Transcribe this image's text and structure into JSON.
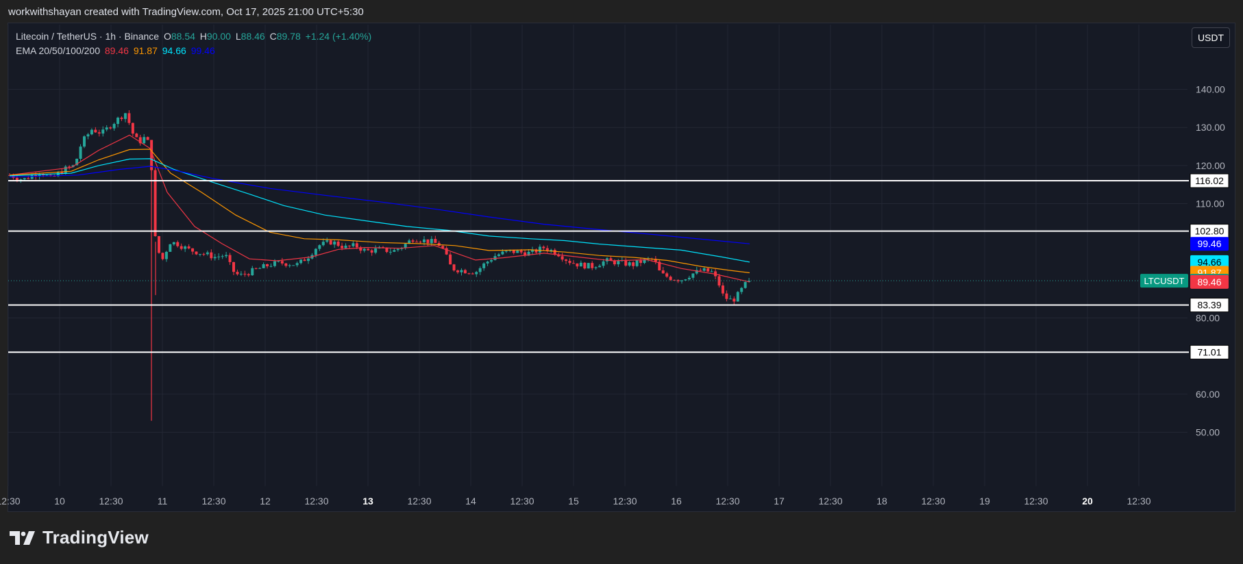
{
  "credit": "workwithshayan created with TradingView.com, Oct 17, 2025 21:00 UTC+5:30",
  "legend": {
    "symbol": "Litecoin / TetherUS · 1h · Binance",
    "o_label": "O",
    "o_value": "88.54",
    "h_label": "H",
    "h_value": "90.00",
    "l_label": "L",
    "l_value": "88.46",
    "c_label": "C",
    "c_value": "89.78",
    "change": "+1.24 (+1.40%)",
    "ema_label": "EMA 20/50/100/200",
    "ema20": "89.46",
    "ema50": "91.87",
    "ema100": "94.66",
    "ema200": "99.46"
  },
  "currency_button": "USDT",
  "brand": {
    "name": "TradingView",
    "logo_icon": "tradingview-logo-icon"
  },
  "colors": {
    "bull": "#26a69a",
    "bear": "#f23645",
    "ema20": "#f23645",
    "ema50": "#ff9800",
    "ema100": "#00e5ff",
    "ema200": "#0000ff",
    "hline": "#ffffff"
  },
  "chart_data": {
    "type": "candlestick",
    "title": "Litecoin / TetherUS · 1h · Binance",
    "y_ticks": [
      "140.00",
      "130.00",
      "120.00",
      "110.00",
      "80.00",
      "60.00",
      "50.00"
    ],
    "x_ticks": [
      "12:30",
      "10",
      "12:30",
      "11",
      "12:30",
      "12",
      "12:30",
      "13",
      "12:30",
      "14",
      "12:30",
      "15",
      "12:30",
      "16",
      "12:30",
      "17",
      "12:30",
      "18",
      "12:30",
      "19",
      "12:30",
      "20",
      "12:30"
    ],
    "x_tick_bold": [
      "13",
      "20"
    ],
    "ylim": [
      42,
      152
    ],
    "horizontal_levels": [
      "116.02",
      "102.80",
      "83.39",
      "71.01"
    ],
    "price_labels": [
      {
        "text": "99.46",
        "value": 99.46,
        "color": "#0000ff",
        "text_color": "#ffffff"
      },
      {
        "text": "94.66",
        "value": 94.66,
        "color": "#00e5ff",
        "text_color": "#000000"
      },
      {
        "text": "91.87",
        "value": 91.87,
        "color": "#ff9800",
        "text_color": "#ffffff"
      },
      {
        "text": "89.78",
        "value": 89.78,
        "color": "#089981",
        "text_color": "#ffffff"
      },
      {
        "text": "89.46",
        "value": 89.46,
        "color": "#f23645",
        "text_color": "#ffffff"
      }
    ],
    "last_price": {
      "symbol": "LTCUSDT",
      "value": 89.78
    },
    "price_path": [
      [
        0,
        117.5
      ],
      [
        20,
        116.3
      ],
      [
        45,
        118.5
      ],
      [
        60,
        116.5
      ],
      [
        80,
        119.0
      ],
      [
        95,
        120.0
      ],
      [
        105,
        126.0
      ],
      [
        120,
        129.5
      ],
      [
        135,
        128.5
      ],
      [
        150,
        131.0
      ],
      [
        160,
        132.5
      ],
      [
        170,
        134.0
      ],
      [
        178,
        129.0
      ],
      [
        188,
        126.0
      ],
      [
        198,
        127.5
      ],
      [
        205,
        125.0
      ],
      [
        207,
        120.0
      ],
      [
        210,
        104.0
      ],
      [
        215,
        98.0
      ],
      [
        225,
        95.0
      ],
      [
        232,
        100.0
      ],
      [
        245,
        99.5
      ],
      [
        260,
        98.0
      ],
      [
        280,
        97.0
      ],
      [
        300,
        96.0
      ],
      [
        315,
        96.5
      ],
      [
        325,
        92.5
      ],
      [
        335,
        91.0
      ],
      [
        350,
        92.0
      ],
      [
        365,
        93.0
      ],
      [
        380,
        94.0
      ],
      [
        395,
        94.5
      ],
      [
        420,
        94.0
      ],
      [
        435,
        96.0
      ],
      [
        450,
        99.0
      ],
      [
        470,
        100.0
      ],
      [
        490,
        98.5
      ],
      [
        505,
        99.0
      ],
      [
        520,
        97.5
      ],
      [
        540,
        98.0
      ],
      [
        560,
        97.5
      ],
      [
        575,
        99.0
      ],
      [
        590,
        101.0
      ],
      [
        600,
        100.5
      ],
      [
        615,
        100.0
      ],
      [
        630,
        99.0
      ],
      [
        645,
        93.0
      ],
      [
        660,
        92.5
      ],
      [
        680,
        92.0
      ],
      [
        695,
        94.5
      ],
      [
        710,
        96.5
      ],
      [
        730,
        97.5
      ],
      [
        760,
        97.0
      ],
      [
        780,
        98.5
      ],
      [
        800,
        97.0
      ],
      [
        815,
        95.0
      ],
      [
        830,
        94.0
      ],
      [
        850,
        93.5
      ],
      [
        870,
        95.0
      ],
      [
        890,
        94.5
      ],
      [
        910,
        94.0
      ],
      [
        925,
        95.0
      ],
      [
        940,
        95.5
      ],
      [
        950,
        91.5
      ],
      [
        965,
        90.5
      ],
      [
        980,
        90.0
      ],
      [
        995,
        91.5
      ],
      [
        1010,
        92.5
      ],
      [
        1025,
        92.0
      ],
      [
        1035,
        89.0
      ],
      [
        1042,
        85.5
      ],
      [
        1055,
        84.5
      ],
      [
        1065,
        86.5
      ],
      [
        1072,
        88.5
      ],
      [
        1080,
        89.78
      ]
    ],
    "spikes": [
      {
        "x": 207,
        "high": 126.0,
        "low": 53.0
      },
      {
        "x": 213,
        "high": 100.0,
        "low": 86.0
      }
    ],
    "ema_lines": [
      {
        "name": "EMA 20",
        "points": [
          [
            0,
            117.5
          ],
          [
            90,
            119.5
          ],
          [
            130,
            124
          ],
          [
            175,
            128
          ],
          [
            205,
            124.5
          ],
          [
            230,
            113
          ],
          [
            270,
            104
          ],
          [
            310,
            99.5
          ],
          [
            350,
            95.5
          ],
          [
            390,
            95
          ],
          [
            440,
            96
          ],
          [
            480,
            98
          ],
          [
            520,
            98.5
          ],
          [
            570,
            98.3
          ],
          [
            620,
            99
          ],
          [
            680,
            95.2
          ],
          [
            720,
            95.8
          ],
          [
            780,
            97
          ],
          [
            830,
            96
          ],
          [
            880,
            95
          ],
          [
            930,
            95.3
          ],
          [
            980,
            93
          ],
          [
            1030,
            91.5
          ],
          [
            1080,
            89.46
          ]
        ]
      },
      {
        "name": "EMA 50",
        "points": [
          [
            0,
            117.5
          ],
          [
            90,
            118.5
          ],
          [
            130,
            121.5
          ],
          [
            175,
            124.2
          ],
          [
            205,
            124.3
          ],
          [
            235,
            118
          ],
          [
            280,
            113
          ],
          [
            330,
            107
          ],
          [
            380,
            102.5
          ],
          [
            430,
            100.8
          ],
          [
            480,
            100.5
          ],
          [
            540,
            99.8
          ],
          [
            600,
            99.5
          ],
          [
            650,
            99
          ],
          [
            700,
            97.7
          ],
          [
            760,
            97.9
          ],
          [
            810,
            97.3
          ],
          [
            860,
            96.4
          ],
          [
            910,
            95.9
          ],
          [
            960,
            95.1
          ],
          [
            1010,
            93.5
          ],
          [
            1050,
            92.5
          ],
          [
            1080,
            91.87
          ]
        ]
      },
      {
        "name": "EMA 100",
        "points": [
          [
            0,
            117.3
          ],
          [
            90,
            118
          ],
          [
            130,
            120
          ],
          [
            175,
            121.7
          ],
          [
            205,
            121.8
          ],
          [
            240,
            119
          ],
          [
            290,
            116
          ],
          [
            350,
            112.5
          ],
          [
            400,
            109.5
          ],
          [
            460,
            107
          ],
          [
            520,
            105.5
          ],
          [
            580,
            104
          ],
          [
            640,
            103
          ],
          [
            700,
            101.5
          ],
          [
            760,
            100.8
          ],
          [
            810,
            100.3
          ],
          [
            860,
            99.4
          ],
          [
            920,
            98.6
          ],
          [
            980,
            97.8
          ],
          [
            1040,
            96
          ],
          [
            1080,
            94.66
          ]
        ]
      },
      {
        "name": "EMA 200",
        "points": [
          [
            0,
            117
          ],
          [
            100,
            117.5
          ],
          [
            160,
            119
          ],
          [
            205,
            119.8
          ],
          [
            240,
            118.8
          ],
          [
            300,
            116.5
          ],
          [
            380,
            114
          ],
          [
            460,
            112.2
          ],
          [
            540,
            110.5
          ],
          [
            620,
            108.6
          ],
          [
            700,
            106.5
          ],
          [
            780,
            104.6
          ],
          [
            860,
            103.2
          ],
          [
            940,
            101.9
          ],
          [
            1020,
            100.5
          ],
          [
            1080,
            99.46
          ]
        ]
      }
    ]
  }
}
